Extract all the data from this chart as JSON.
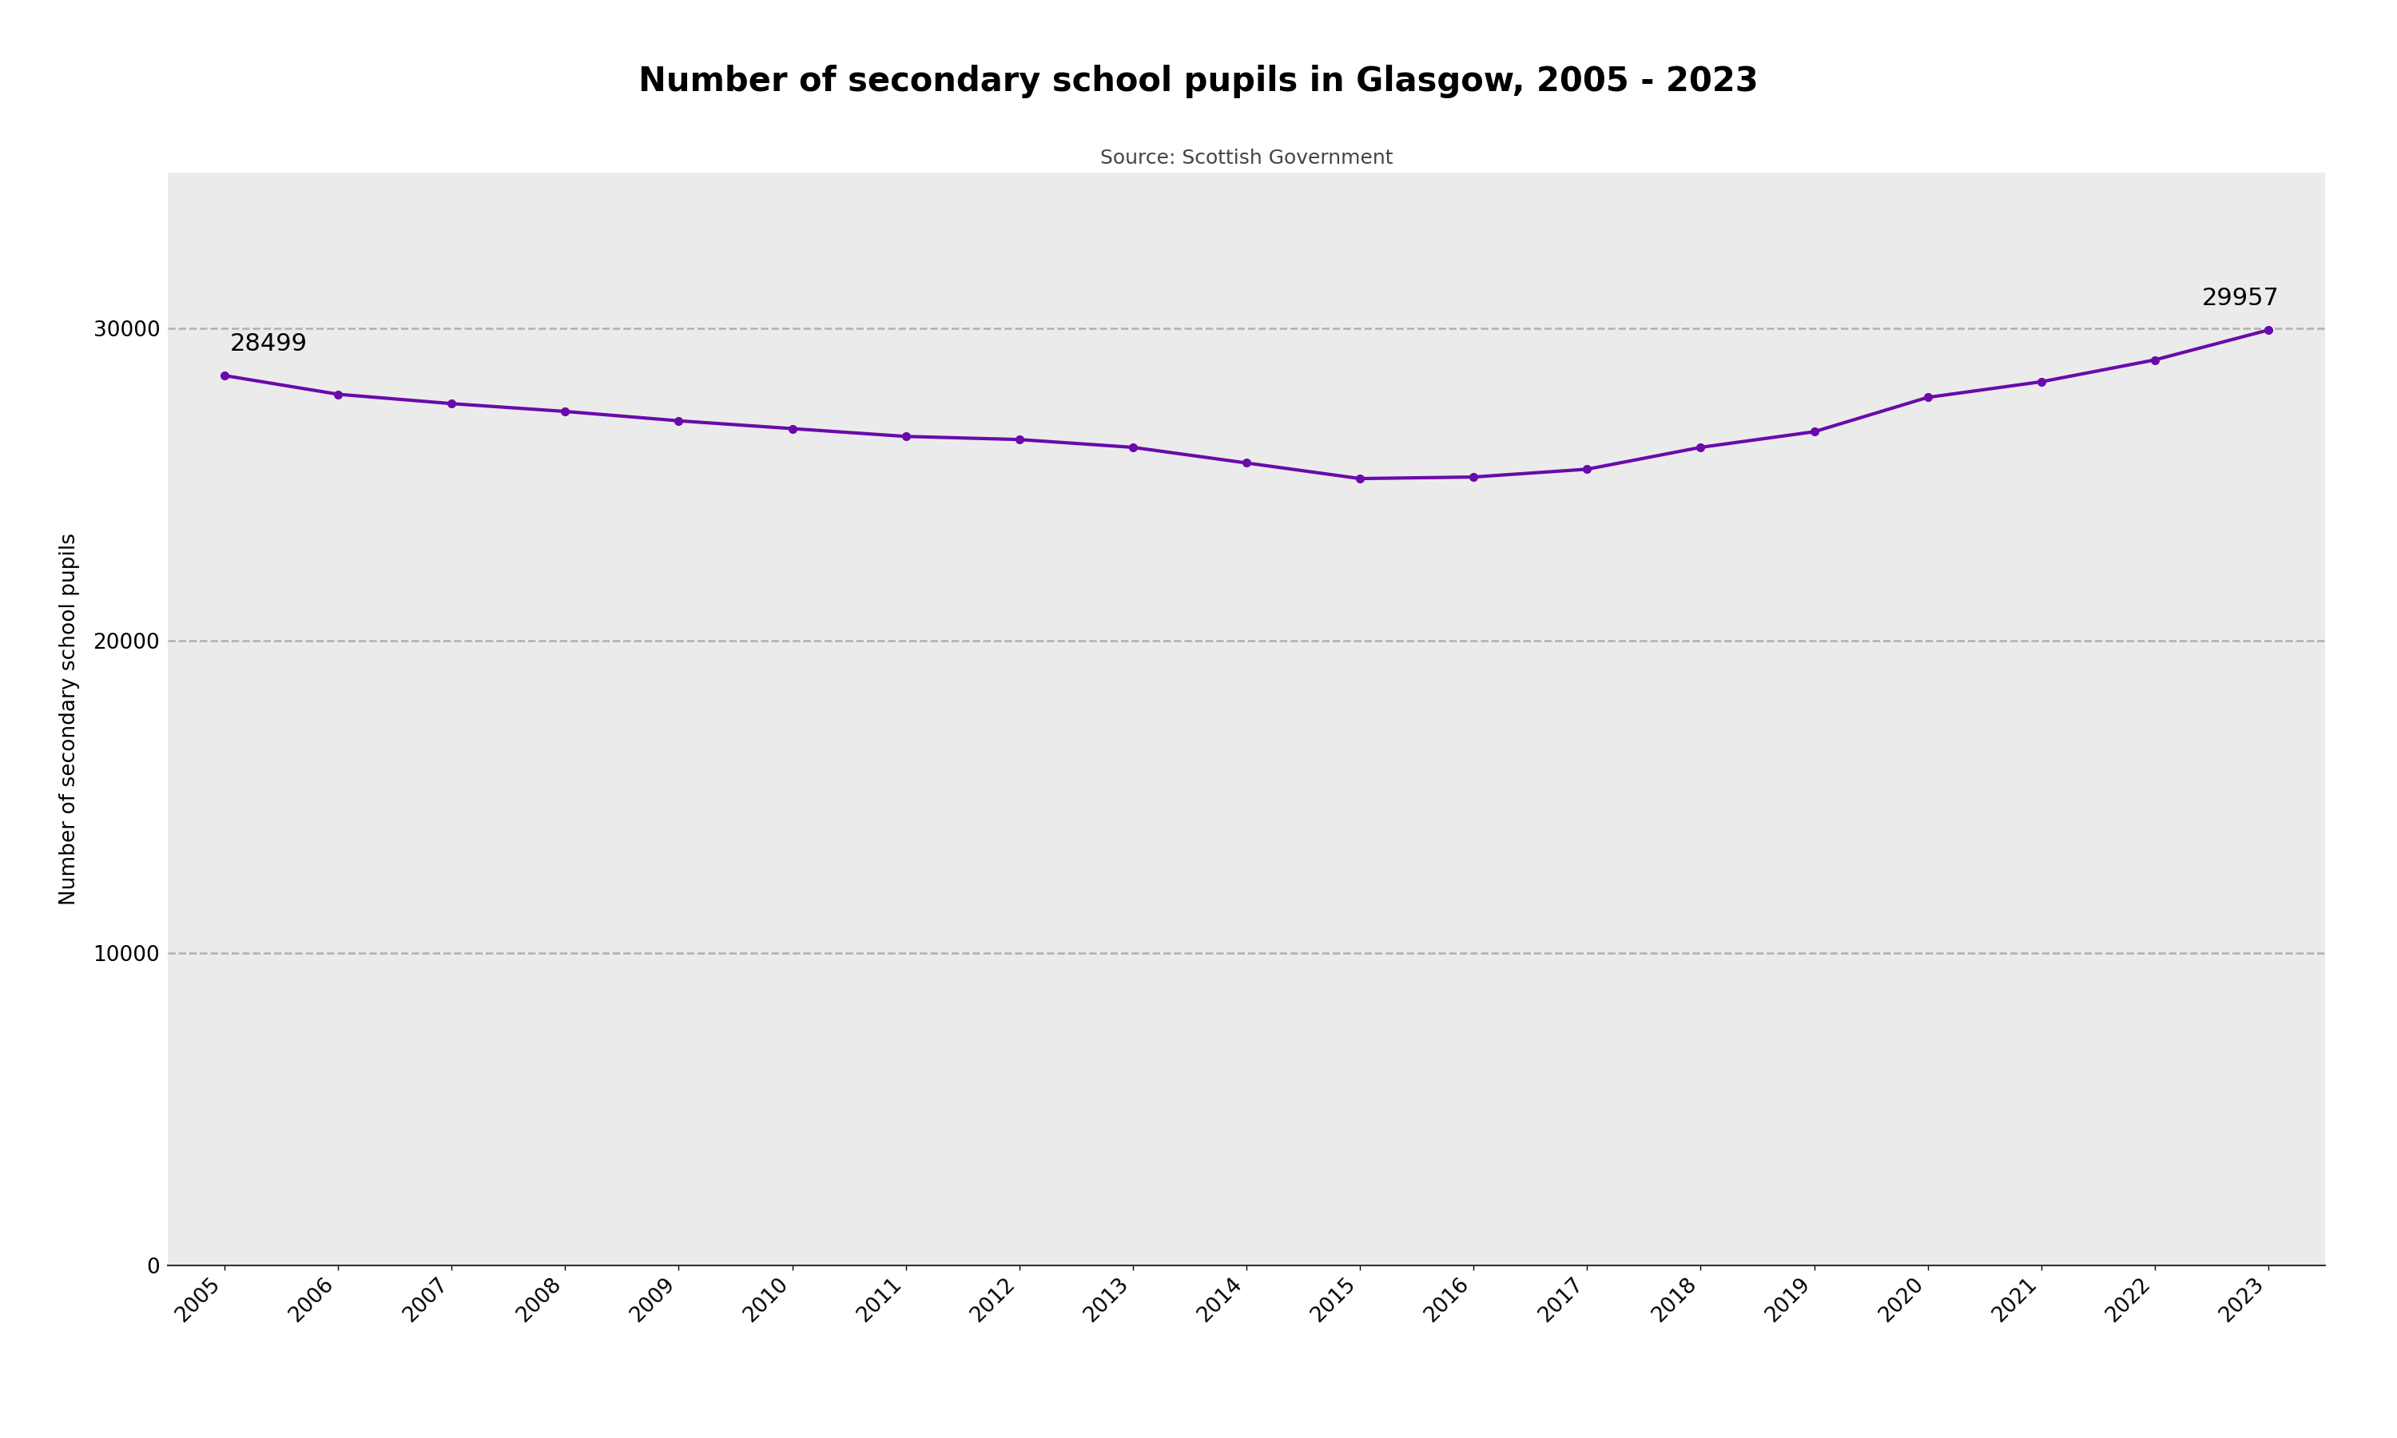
{
  "title": "Number of secondary school pupils in Glasgow, 2005 - 2023",
  "subtitle": "Source: Scottish Government",
  "years": [
    2005,
    2006,
    2007,
    2008,
    2009,
    2010,
    2011,
    2012,
    2013,
    2014,
    2015,
    2016,
    2017,
    2018,
    2019,
    2020,
    2021,
    2022,
    2023
  ],
  "values": [
    28499,
    27900,
    27600,
    27350,
    27050,
    26800,
    26550,
    26450,
    26200,
    25700,
    25200,
    25250,
    25500,
    26200,
    26700,
    27800,
    28300,
    29000,
    29957
  ],
  "line_color": "#6a0aab",
  "marker_color": "#6a0aab",
  "background_color": "#ebebeb",
  "outer_background": "#ffffff",
  "ylabel": "Number of secondary school pupils",
  "ylim": [
    0,
    35000
  ],
  "yticks": [
    0,
    10000,
    20000,
    30000
  ],
  "grid_color": "#b0b0b0",
  "label_first": "28499",
  "label_last": "29957",
  "title_fontsize": 30,
  "subtitle_fontsize": 18,
  "label_fontsize": 22,
  "tick_fontsize": 19,
  "ylabel_fontsize": 19
}
